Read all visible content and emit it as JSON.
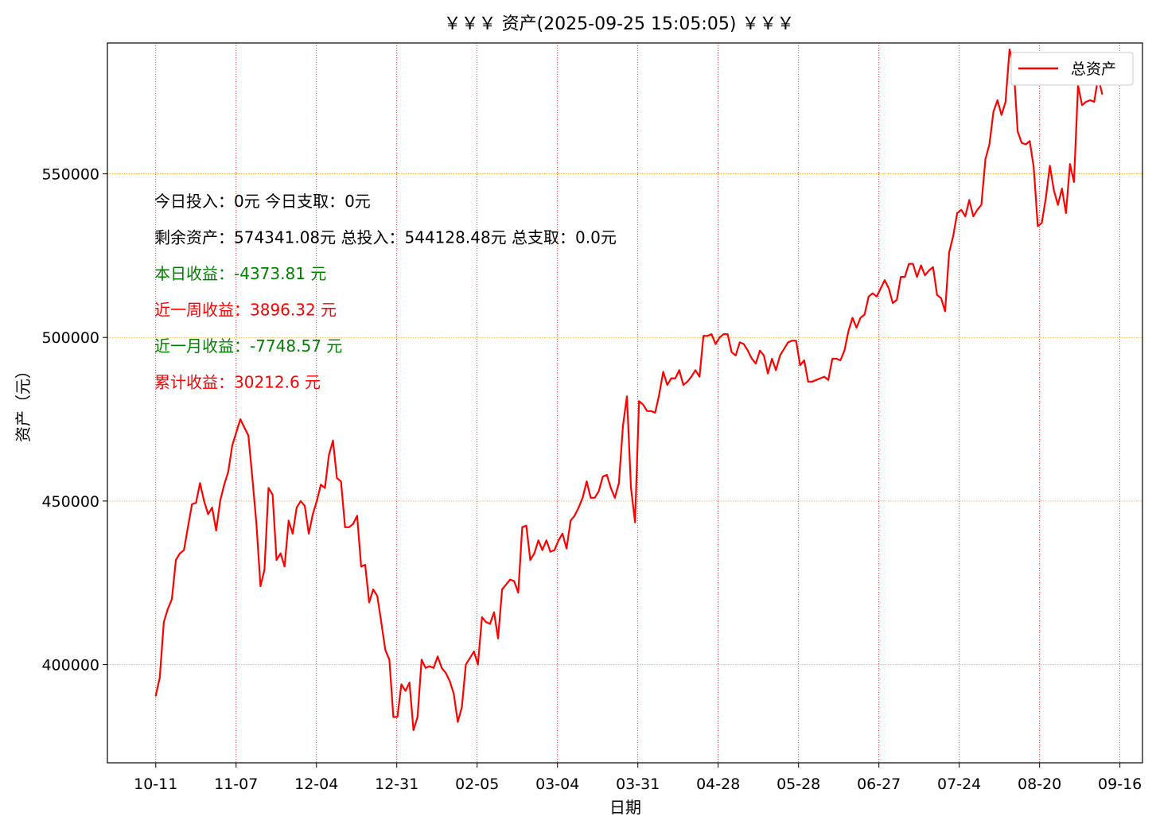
{
  "chart_data": {
    "type": "line",
    "title": "￥￥￥ 资产(2025-09-25 15:05:05) ￥￥￥",
    "xlabel": "日期",
    "ylabel": "资产（元）",
    "ylim": [
      370000,
      590000
    ],
    "yticks": [
      400000,
      450000,
      500000,
      550000
    ],
    "ytick_labels": [
      "400000",
      "450000",
      "500000",
      "550000"
    ],
    "xticks": [
      "10-11",
      "11-07",
      "12-04",
      "12-31",
      "02-05",
      "03-04",
      "03-31",
      "04-28",
      "05-28",
      "06-27",
      "07-24",
      "08-20",
      "09-16"
    ],
    "xlim_index": [
      -12,
      245
    ],
    "grid": true,
    "legend": {
      "position": "top-right",
      "entries": [
        "总资产"
      ]
    },
    "colors": {
      "line": "#ff0000",
      "ygrid": "#ffa500",
      "xgrid": "#ff0000",
      "positive": "#ff0000",
      "negative": "#008000"
    },
    "annotations": [
      {
        "text": "今日投入：0元 今日支取：0元",
        "color": "#000000"
      },
      {
        "text": "剩余资产：574341.08元 总投入：544128.48元  总支取：0.0元",
        "color": "#000000"
      },
      {
        "text": "本日收益：-4373.81 元",
        "color": "#008000"
      },
      {
        "text": "近一周收益：3896.32 元",
        "color": "#ff0000"
      },
      {
        "text": "近一月收益：-7748.57 元",
        "color": "#008000"
      },
      {
        "text": "累计收益：30212.6 元",
        "color": "#ff0000"
      }
    ],
    "series": [
      {
        "name": "总资产",
        "points": [
          [
            0,
            390500
          ],
          [
            1,
            396000
          ],
          [
            2,
            413000
          ],
          [
            3,
            417000
          ],
          [
            4,
            420000
          ],
          [
            5,
            432000
          ],
          [
            6,
            434000
          ],
          [
            7,
            435000
          ],
          [
            8,
            442000
          ],
          [
            9,
            449000
          ],
          [
            10,
            449500
          ],
          [
            11,
            455500
          ],
          [
            12,
            450000
          ],
          [
            13,
            446000
          ],
          [
            14,
            448000
          ],
          [
            15,
            441000
          ],
          [
            16,
            450000
          ],
          [
            17,
            455000
          ],
          [
            18,
            459000
          ],
          [
            19,
            467000
          ],
          [
            20,
            471000
          ],
          [
            21,
            475000
          ],
          [
            22,
            472500
          ],
          [
            23,
            470000
          ],
          [
            24,
            457000
          ],
          [
            25,
            443000
          ],
          [
            26,
            424000
          ],
          [
            27,
            429000
          ],
          [
            28,
            454000
          ],
          [
            29,
            452000
          ],
          [
            30,
            432000
          ],
          [
            31,
            434000
          ],
          [
            32,
            430000
          ],
          [
            33,
            444000
          ],
          [
            34,
            440000
          ],
          [
            35,
            448000
          ],
          [
            36,
            450000
          ],
          [
            37,
            448500
          ],
          [
            38,
            440000
          ],
          [
            39,
            446000
          ],
          [
            40,
            450000
          ],
          [
            41,
            455000
          ],
          [
            42,
            454000
          ],
          [
            43,
            464000
          ],
          [
            44,
            468500
          ],
          [
            45,
            457000
          ],
          [
            46,
            456000
          ],
          [
            47,
            442000
          ],
          [
            48,
            442000
          ],
          [
            49,
            443000
          ],
          [
            50,
            445500
          ],
          [
            51,
            430000
          ],
          [
            52,
            430500
          ],
          [
            53,
            419000
          ],
          [
            54,
            423000
          ],
          [
            55,
            421000
          ],
          [
            56,
            413000
          ],
          [
            57,
            404500
          ],
          [
            58,
            401500
          ],
          [
            59,
            384000
          ],
          [
            60,
            384000
          ],
          [
            61,
            394000
          ],
          [
            62,
            392000
          ],
          [
            63,
            394500
          ],
          [
            64,
            380000
          ],
          [
            65,
            384000
          ],
          [
            66,
            401500
          ],
          [
            67,
            399000
          ],
          [
            68,
            399500
          ],
          [
            69,
            399000
          ],
          [
            70,
            402500
          ],
          [
            71,
            399000
          ],
          [
            72,
            397500
          ],
          [
            73,
            395000
          ],
          [
            74,
            391000
          ],
          [
            75,
            382500
          ],
          [
            76,
            387000
          ],
          [
            77,
            400000
          ],
          [
            78,
            402000
          ],
          [
            79,
            404000
          ],
          [
            80,
            400000
          ],
          [
            81,
            414500
          ],
          [
            82,
            413000
          ],
          [
            83,
            412500
          ],
          [
            84,
            416000
          ],
          [
            85,
            408000
          ],
          [
            86,
            423000
          ],
          [
            87,
            424500
          ],
          [
            88,
            426000
          ],
          [
            89,
            425500
          ],
          [
            90,
            422000
          ],
          [
            91,
            442000
          ],
          [
            92,
            442500
          ],
          [
            93,
            432000
          ],
          [
            94,
            434000
          ],
          [
            95,
            438000
          ],
          [
            96,
            435000
          ],
          [
            97,
            438000
          ],
          [
            98,
            434500
          ],
          [
            99,
            435000
          ],
          [
            100,
            438000
          ],
          [
            101,
            440000
          ],
          [
            102,
            435500
          ],
          [
            103,
            444000
          ],
          [
            104,
            445500
          ],
          [
            105,
            448000
          ],
          [
            106,
            451000
          ],
          [
            107,
            456000
          ],
          [
            108,
            451000
          ],
          [
            109,
            451000
          ],
          [
            110,
            453000
          ],
          [
            111,
            457500
          ],
          [
            112,
            458000
          ],
          [
            113,
            454000
          ],
          [
            114,
            451000
          ],
          [
            115,
            455500
          ],
          [
            116,
            473000
          ],
          [
            117,
            482000
          ],
          [
            118,
            454000
          ],
          [
            119,
            443500
          ],
          [
            120,
            480500
          ],
          [
            121,
            479500
          ],
          [
            122,
            477500
          ],
          [
            123,
            477500
          ],
          [
            124,
            477000
          ],
          [
            125,
            482500
          ],
          [
            126,
            489500
          ],
          [
            127,
            485500
          ],
          [
            128,
            487500
          ],
          [
            129,
            487500
          ],
          [
            130,
            490000
          ],
          [
            131,
            485500
          ],
          [
            132,
            486500
          ],
          [
            133,
            488000
          ],
          [
            134,
            490000
          ],
          [
            135,
            488000
          ],
          [
            136,
            500500
          ],
          [
            137,
            500500
          ],
          [
            138,
            501000
          ],
          [
            139,
            498000
          ],
          [
            140,
            500000
          ],
          [
            141,
            501000
          ],
          [
            142,
            501000
          ],
          [
            143,
            495500
          ],
          [
            144,
            494500
          ],
          [
            145,
            498500
          ],
          [
            146,
            498000
          ],
          [
            147,
            496000
          ],
          [
            148,
            493500
          ],
          [
            149,
            492000
          ],
          [
            150,
            496000
          ],
          [
            151,
            494500
          ],
          [
            152,
            489000
          ],
          [
            153,
            493500
          ],
          [
            154,
            490000
          ],
          [
            155,
            494500
          ],
          [
            156,
            496500
          ],
          [
            157,
            498500
          ],
          [
            158,
            499000
          ],
          [
            159,
            499000
          ],
          [
            160,
            491500
          ],
          [
            161,
            493000
          ],
          [
            162,
            486500
          ],
          [
            163,
            486500
          ],
          [
            164,
            487000
          ],
          [
            165,
            487500
          ],
          [
            166,
            488000
          ],
          [
            167,
            487000
          ],
          [
            168,
            493500
          ],
          [
            169,
            493500
          ],
          [
            170,
            493000
          ],
          [
            171,
            496000
          ],
          [
            172,
            502000
          ],
          [
            173,
            506000
          ],
          [
            174,
            503000
          ],
          [
            175,
            506000
          ],
          [
            176,
            507000
          ],
          [
            177,
            512500
          ],
          [
            178,
            513500
          ],
          [
            179,
            512500
          ],
          [
            180,
            515000
          ],
          [
            181,
            517500
          ],
          [
            182,
            515000
          ],
          [
            183,
            510500
          ],
          [
            184,
            511500
          ],
          [
            185,
            518500
          ],
          [
            186,
            518500
          ],
          [
            187,
            522500
          ],
          [
            188,
            522500
          ],
          [
            189,
            518500
          ],
          [
            190,
            522000
          ],
          [
            191,
            519000
          ],
          [
            192,
            520500
          ],
          [
            193,
            521500
          ],
          [
            194,
            513000
          ],
          [
            195,
            512000
          ],
          [
            196,
            508000
          ],
          [
            197,
            526000
          ],
          [
            198,
            531000
          ],
          [
            199,
            538000
          ],
          [
            200,
            539000
          ],
          [
            201,
            537000
          ],
          [
            202,
            542000
          ],
          [
            203,
            537000
          ],
          [
            204,
            539000
          ],
          [
            205,
            540500
          ],
          [
            206,
            554500
          ],
          [
            207,
            559000
          ],
          [
            208,
            569000
          ],
          [
            209,
            572500
          ],
          [
            210,
            568000
          ],
          [
            211,
            572000
          ],
          [
            212,
            588000
          ],
          [
            213,
            583000
          ],
          [
            214,
            563000
          ],
          [
            215,
            559500
          ],
          [
            216,
            559000
          ],
          [
            217,
            560000
          ],
          [
            218,
            552000
          ],
          [
            219,
            534000
          ],
          [
            220,
            535000
          ],
          [
            221,
            542500
          ],
          [
            222,
            552500
          ],
          [
            223,
            545000
          ],
          [
            224,
            540500
          ],
          [
            225,
            545500
          ],
          [
            226,
            538000
          ],
          [
            227,
            553000
          ],
          [
            228,
            547500
          ],
          [
            229,
            577000
          ],
          [
            230,
            571000
          ],
          [
            231,
            572000
          ],
          [
            232,
            572500
          ],
          [
            233,
            572000
          ],
          [
            234,
            579500
          ],
          [
            235,
            574341
          ]
        ]
      }
    ]
  }
}
